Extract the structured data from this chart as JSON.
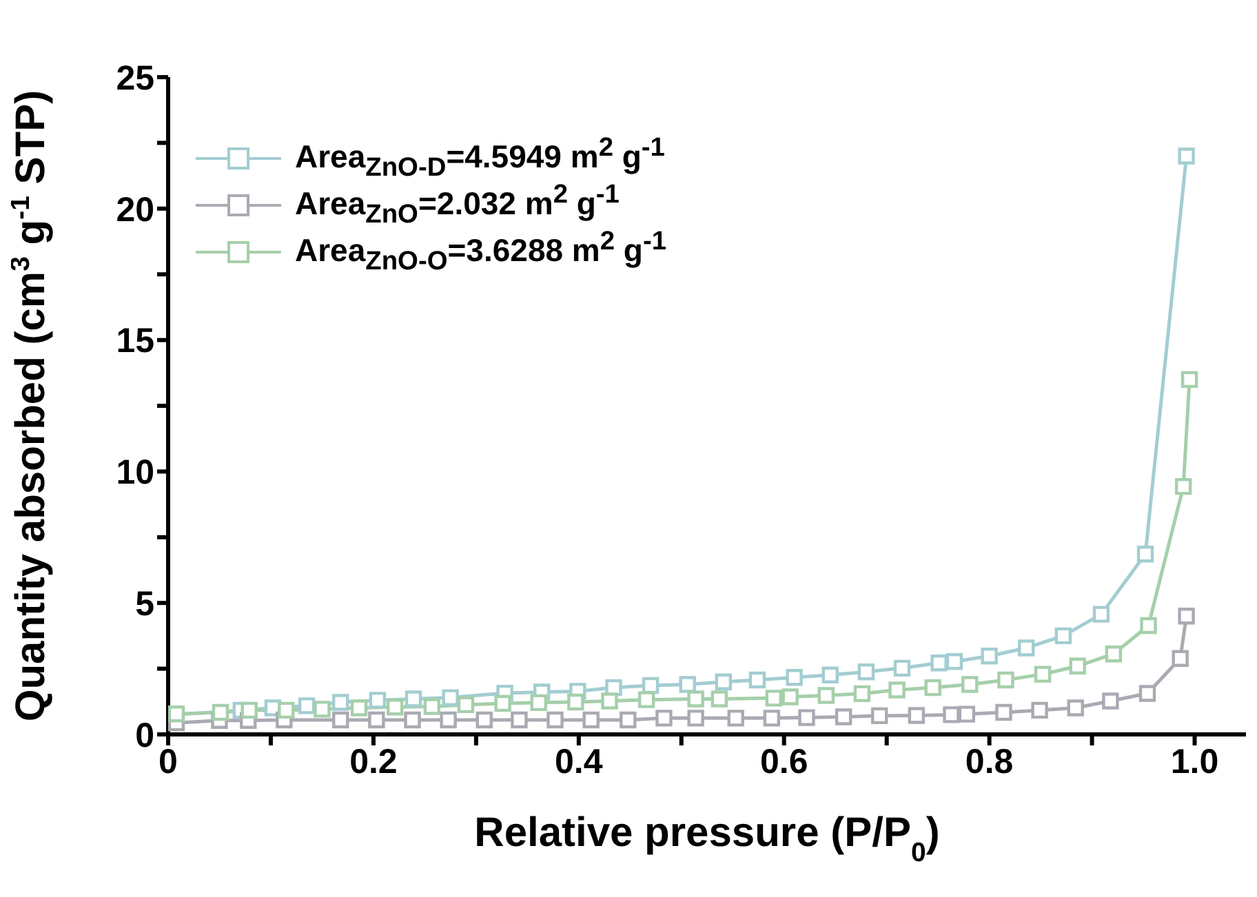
{
  "chart_data": {
    "type": "line",
    "xlabel": "Relative pressure (P/P$_{0}$)",
    "ylabel": "Quantity absorbed (cm$^{3}$ g$^{-1}$ STP)",
    "xlim": [
      0,
      1.05
    ],
    "ylim": [
      0,
      25
    ],
    "xticks": [
      0,
      {
        "value": 0.1,
        "label": null
      },
      0.2,
      {
        "value": 0.3,
        "label": null
      },
      0.4,
      {
        "value": 0.5,
        "label": null
      },
      0.6,
      {
        "value": 0.7,
        "label": null
      },
      0.8,
      {
        "value": 0.9,
        "label": null
      },
      {
        "value": 1,
        "label": "1.0"
      }
    ],
    "yticks": [
      0,
      {
        "value": 2.5,
        "label": null
      },
      5,
      {
        "value": 7.5,
        "label": null
      },
      10,
      {
        "value": 12.5,
        "label": null
      },
      15,
      {
        "value": 17.5,
        "label": null
      },
      20,
      {
        "value": 22.5,
        "label": null
      },
      25
    ],
    "grid": false,
    "legend": "top left",
    "marker": "square",
    "line_style": "solid",
    "series": [
      {
        "name": "Area$_{ZnO-D}$=4.5949 m$^{2}$ g$^{-1}$",
        "color": "#a3cdd1",
        "x": [
          0.008,
          0.071,
          0.102,
          0.135,
          0.168,
          0.204,
          0.239,
          0.275,
          0.328,
          0.364,
          0.399,
          0.434,
          0.47,
          0.506,
          0.541,
          0.574,
          0.61,
          0.645,
          0.68,
          0.715,
          0.751,
          0.766,
          0.8,
          0.836,
          0.872,
          0.909,
          0.952,
          0.992
        ],
        "values": [
          0.75,
          0.92,
          1.01,
          1.09,
          1.22,
          1.3,
          1.35,
          1.4,
          1.57,
          1.61,
          1.64,
          1.78,
          1.86,
          1.9,
          2.0,
          2.07,
          2.17,
          2.26,
          2.38,
          2.52,
          2.72,
          2.77,
          2.98,
          3.29,
          3.75,
          4.57,
          6.86,
          22.0
        ]
      },
      {
        "name": "Area$_{ZnO}$=2.032 m$^{2}$ g$^{-1}$",
        "color": "#aaaab3",
        "x": [
          0.008,
          0.05,
          0.078,
          0.113,
          0.168,
          0.203,
          0.238,
          0.273,
          0.308,
          0.342,
          0.377,
          0.412,
          0.448,
          0.483,
          0.514,
          0.553,
          0.588,
          0.622,
          0.658,
          0.693,
          0.729,
          0.763,
          0.778,
          0.814,
          0.849,
          0.884,
          0.918,
          0.954,
          0.986,
          0.992
        ],
        "values": [
          0.44,
          0.53,
          0.53,
          0.55,
          0.55,
          0.55,
          0.55,
          0.55,
          0.55,
          0.55,
          0.55,
          0.55,
          0.55,
          0.62,
          0.62,
          0.62,
          0.62,
          0.64,
          0.67,
          0.71,
          0.72,
          0.75,
          0.77,
          0.84,
          0.92,
          1.01,
          1.27,
          1.56,
          2.89,
          4.5
        ]
      },
      {
        "name": "Area$_{ZnO-O}$=3.6288 m$^{2}$ g$^{-1}$",
        "color": "#a5cfaa",
        "x": [
          0.008,
          0.051,
          0.079,
          0.115,
          0.15,
          0.186,
          0.221,
          0.257,
          0.29,
          0.326,
          0.361,
          0.397,
          0.43,
          0.466,
          0.514,
          0.537,
          0.59,
          0.606,
          0.641,
          0.676,
          0.71,
          0.745,
          0.781,
          0.816,
          0.852,
          0.886,
          0.921,
          0.955,
          0.989,
          0.995
        ],
        "values": [
          0.78,
          0.84,
          0.92,
          0.92,
          0.96,
          1.01,
          1.04,
          1.06,
          1.13,
          1.18,
          1.21,
          1.23,
          1.27,
          1.32,
          1.35,
          1.35,
          1.38,
          1.43,
          1.48,
          1.55,
          1.69,
          1.78,
          1.9,
          2.07,
          2.29,
          2.6,
          3.06,
          4.14,
          9.43,
          13.5
        ]
      }
    ]
  }
}
